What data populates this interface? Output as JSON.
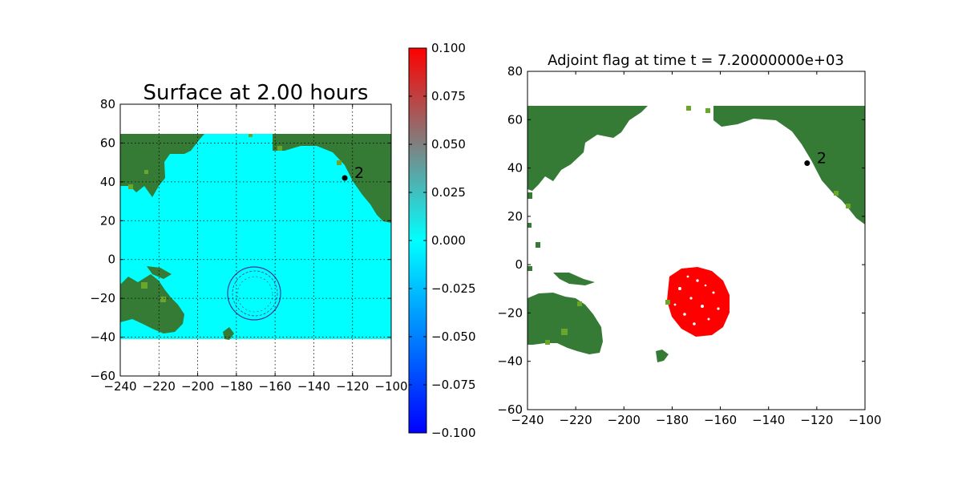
{
  "chart_data": [
    {
      "type": "heatmap",
      "title": "Surface at 2.00 hours",
      "xlim": [
        -240,
        -100
      ],
      "ylim": [
        -60,
        80
      ],
      "xticks": [
        "−240",
        "−220",
        "−200",
        "−180",
        "−160",
        "−140",
        "−120",
        "−100"
      ],
      "yticks": [
        "−60",
        "−40",
        "−20",
        "0",
        "20",
        "40",
        "60",
        "80"
      ],
      "grid": true,
      "gauge": {
        "name": "2",
        "x": -124,
        "y": 42
      },
      "colorbar": {
        "ticks": [
          "0.100",
          "0.075",
          "0.050",
          "0.025",
          "0.000",
          "−0.025",
          "−0.050",
          "−0.075",
          "−0.100"
        ],
        "range": [
          -0.1,
          0.1
        ]
      },
      "colors": {
        "land": "#357a35",
        "land_light": "#6aa52c",
        "water": "#00ffff",
        "wave": "#3a3aa0"
      }
    },
    {
      "type": "heatmap",
      "title": "Adjoint flag at time t = 7.20000000e+03",
      "xlim": [
        -240,
        -100
      ],
      "ylim": [
        -60,
        80
      ],
      "xticks": [
        "−240",
        "−220",
        "−200",
        "−180",
        "−160",
        "−140",
        "−120",
        "−100"
      ],
      "yticks": [
        "−60",
        "−40",
        "−20",
        "0",
        "20",
        "40",
        "60",
        "80"
      ],
      "grid": false,
      "gauge": {
        "name": "2",
        "x": -124,
        "y": 42
      },
      "colors": {
        "land": "#357a35",
        "land_light": "#6aa52c",
        "flag": "#ff0000"
      }
    }
  ]
}
